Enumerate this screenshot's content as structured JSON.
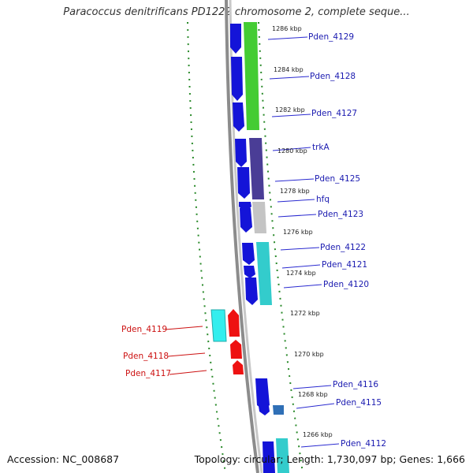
{
  "title": "Paracoccus denitrificans PD1222 chromosome 2, complete seque...",
  "accession": "Accession: NC_008687",
  "stats": "Topology: circular; Length: 1,730,097 bp; Genes: 1,666",
  "colors": {
    "cds_blue": "#1414d8",
    "cds_red": "#ee1111",
    "label_blue": "#1a1ab0",
    "label_red": "#cc1111",
    "green": "#44cc33",
    "purple": "#4a3d96",
    "grey": "#c4c4c4",
    "cyan": "#33cccc",
    "backbone": "#999999",
    "ticks": "#2a8a2a"
  },
  "kbp_labels": [
    "1286 kbp",
    "1284 kbp",
    "1282 kbp",
    "1280 kbp",
    "1278 kbp",
    "1276 kbp",
    "1274 kbp",
    "1272 kbp",
    "1270 kbp",
    "1268 kbp",
    "1266 kbp"
  ],
  "genes_forward": [
    "Pden_4129",
    "Pden_4128",
    "Pden_4127",
    "trkA",
    "Pden_4125",
    "hfq",
    "Pden_4123",
    "Pden_4122",
    "Pden_4121",
    "Pden_4120",
    "Pden_4116",
    "Pden_4115",
    "Pden_4112"
  ],
  "genes_reverse": [
    "Pden_4119",
    "Pden_4118",
    "Pden_4117"
  ]
}
